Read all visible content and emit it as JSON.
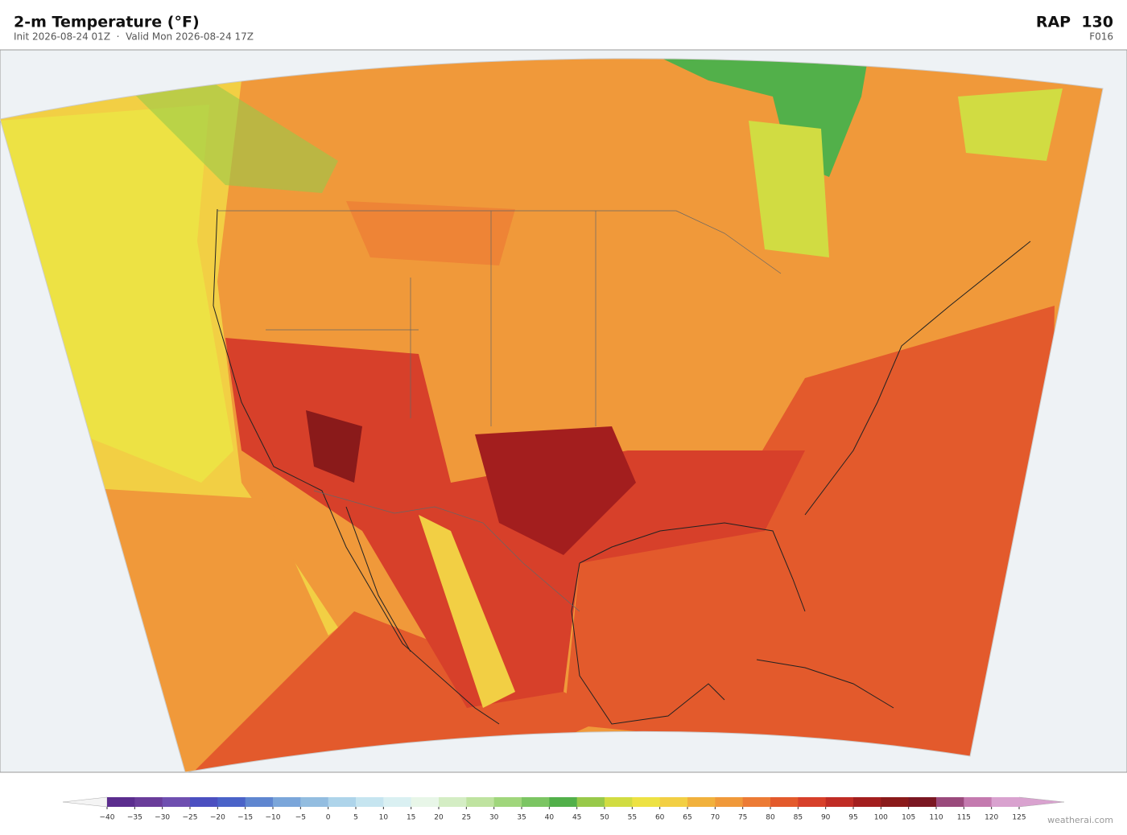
{
  "header": {
    "title": "2-m Temperature  (°F)",
    "subtitle": "Init 2026-08-24 01Z  ·  Valid Mon 2026-08-24 17Z",
    "model": "RAP  130",
    "forecast_hour": "F016"
  },
  "colorbar": {
    "ticks": [
      {
        "value": -40,
        "label": "−40"
      },
      {
        "value": -35,
        "label": "−35"
      },
      {
        "value": -30,
        "label": "−30"
      },
      {
        "value": -25,
        "label": "−25"
      },
      {
        "value": -20,
        "label": "−20"
      },
      {
        "value": -15,
        "label": "−15"
      },
      {
        "value": -10,
        "label": "−10"
      },
      {
        "value": -5,
        "label": "−5"
      },
      0,
      5,
      10,
      15,
      20,
      25,
      30,
      35,
      40,
      45,
      50,
      55,
      60,
      65,
      70,
      75,
      80,
      85,
      90,
      95,
      100,
      105,
      110,
      115,
      120,
      125
    ],
    "colors": [
      "#5b2d8e",
      "#6a3d9a",
      "#6f4fb0",
      "#4b4fc0",
      "#4a63c8",
      "#5f86d0",
      "#7ba6da",
      "#93bde0",
      "#aed4ea",
      "#c6e5f0",
      "#daf0f2",
      "#e8f6e8",
      "#d4edc4",
      "#bfe3a0",
      "#a0d67c",
      "#7cc563",
      "#52b04a",
      "#98c94a",
      "#d1dc42",
      "#ede244",
      "#f2cf44",
      "#f1b13d",
      "#f0993a",
      "#ec7b35",
      "#e35a2c",
      "#d7402a",
      "#c02c25",
      "#a31e1e",
      "#8a1a1a",
      "#7a1722",
      "#9a4a7c",
      "#c47aaf",
      "#d9a2cf"
    ],
    "under_color": "#f4f4f4",
    "over_color": "#d9a2cf"
  },
  "footer": {
    "credit": "weatherai.com"
  }
}
